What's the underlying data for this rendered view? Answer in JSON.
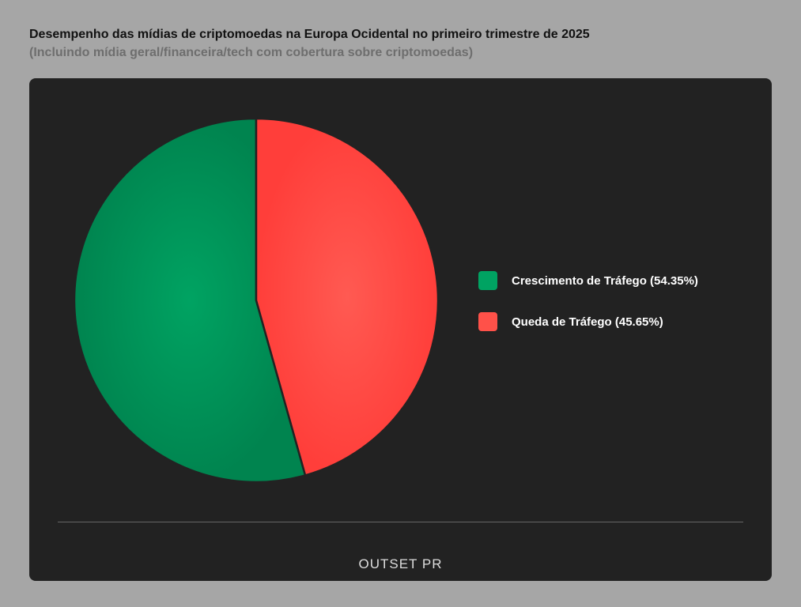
{
  "chart_data": {
    "type": "pie",
    "title": "Desempenho das mídias de criptomoedas na Europa Ocidental no primeiro trimestre de 2025",
    "subtitle": "(Incluindo mídia geral/financeira/tech com cobertura sobre criptomoedas)",
    "legend_position": "right",
    "slices": [
      {
        "label": "Crescimento de Tráfego (54.35%)",
        "value": 54.35,
        "color": "#00945a"
      },
      {
        "label": "Queda de Tráfego (45.65%)",
        "value": 45.65,
        "color": "#ff4a44"
      }
    ]
  },
  "brand": "OUTSET PR"
}
